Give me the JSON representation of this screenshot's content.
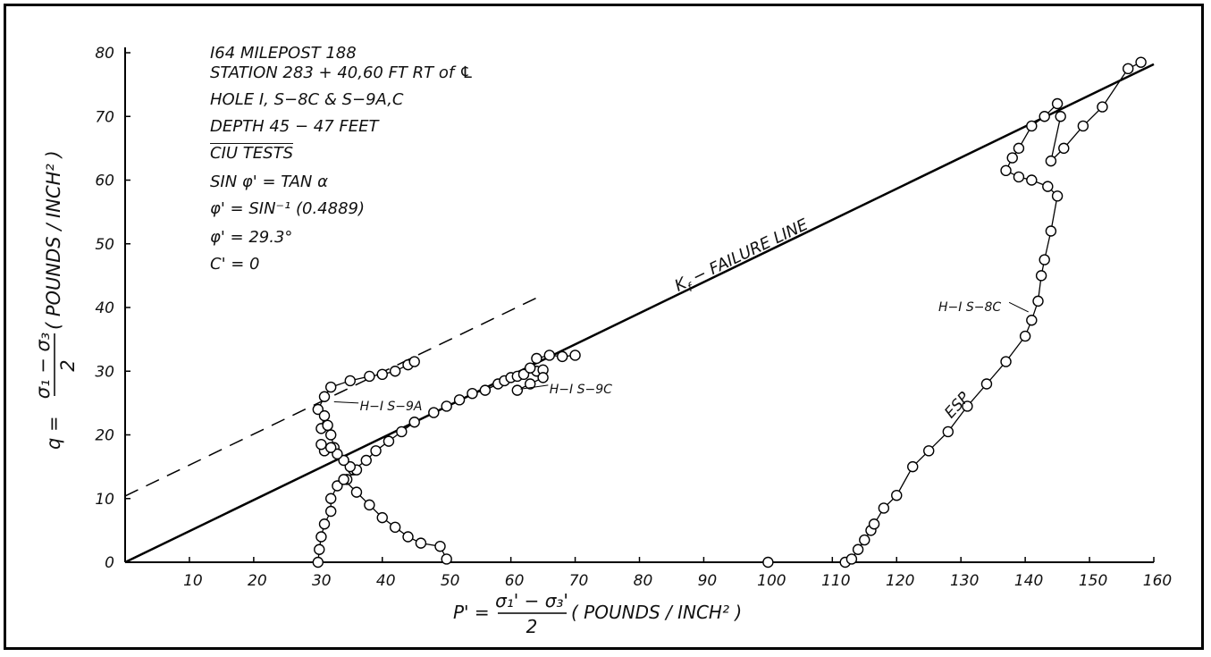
{
  "chart_data": {
    "type": "line",
    "x_axis": {
      "range": [
        0,
        160
      ],
      "ticks": [
        10,
        20,
        30,
        40,
        50,
        60,
        70,
        80,
        90,
        100,
        110,
        120,
        130,
        140,
        150,
        160
      ]
    },
    "y_axis": {
      "range": [
        0,
        80
      ],
      "ticks": [
        0,
        10,
        20,
        30,
        40,
        50,
        60,
        70,
        80
      ]
    },
    "xlabel": {
      "prefix": "P' =",
      "numerator": "σ₁' − σ₃'",
      "denominator": "2",
      "units": "( POUNDS / INCH² )"
    },
    "ylabel": {
      "prefix": "q =",
      "numerator": "σ₁ − σ₃",
      "denominator": "2",
      "units": "( POUNDS / INCH² )"
    },
    "notes": [
      "I64 MILEPOST 188",
      "STATION 283 + 40,60 FT RT of ℄",
      "HOLE I, S−8C & S−9A,C",
      "DEPTH 45 − 47 FEET",
      "CIU TESTS",
      "SIN φ' = TAN α",
      "φ' = SIN⁻¹ (0.4889)",
      "φ' = 29.3°",
      "C' = 0"
    ],
    "lines": [
      {
        "name": "Kf − FAILURE LINE",
        "style": "solid",
        "points": [
          [
            0,
            0
          ],
          [
            160,
            78.2
          ]
        ]
      },
      {
        "name": "",
        "style": "dashed",
        "points": [
          [
            0,
            10.4
          ],
          [
            65,
            42
          ]
        ]
      }
    ],
    "series": [
      {
        "name": "H−I S−9A",
        "points": [
          [
            30,
            24
          ],
          [
            31,
            26
          ],
          [
            32,
            27.5
          ],
          [
            35,
            28.5
          ],
          [
            38,
            29.2
          ],
          [
            40,
            29.5
          ],
          [
            42,
            30
          ],
          [
            44,
            31
          ],
          [
            45,
            31.5
          ]
        ]
      },
      {
        "name": "H−I S−9A",
        "points": [
          [
            30.5,
            21
          ],
          [
            31,
            23
          ],
          [
            31.5,
            21.5
          ],
          [
            32,
            20
          ],
          [
            32.5,
            18
          ],
          [
            31,
            17.5
          ],
          [
            30.5,
            18.5
          ]
        ]
      },
      {
        "name": "H−I S−9C",
        "points": [
          [
            35.5,
            14.5
          ],
          [
            37.5,
            16
          ],
          [
            39,
            17.5
          ],
          [
            41,
            19
          ],
          [
            43,
            20.5
          ],
          [
            45,
            22
          ],
          [
            48,
            23.5
          ],
          [
            50,
            24.5
          ],
          [
            52,
            25.5
          ],
          [
            54,
            26.5
          ],
          [
            56,
            27
          ],
          [
            58,
            28
          ],
          [
            59,
            28.5
          ],
          [
            60,
            29
          ],
          [
            61,
            29.2
          ],
          [
            62,
            29.5
          ],
          [
            64,
            30
          ],
          [
            65,
            30.2
          ],
          [
            63,
            30.5
          ],
          [
            64,
            32
          ],
          [
            66,
            32.5
          ],
          [
            68,
            32.3
          ],
          [
            70,
            32.5
          ]
        ]
      },
      {
        "name": "H−I S−9C",
        "points": [
          [
            61,
            27
          ],
          [
            63,
            28
          ],
          [
            65,
            29
          ]
        ]
      },
      {
        "name": "",
        "points": [
          [
            30,
            0
          ],
          [
            30.2,
            2
          ],
          [
            30.5,
            4
          ],
          [
            31,
            6
          ],
          [
            32,
            8
          ],
          [
            32,
            10
          ],
          [
            33,
            12
          ],
          [
            34.5,
            13
          ],
          [
            36,
            14.5
          ],
          [
            35,
            15
          ],
          [
            34,
            16
          ],
          [
            33,
            17
          ],
          [
            32,
            18
          ]
        ]
      },
      {
        "name": "",
        "points": [
          [
            34,
            13
          ],
          [
            36,
            11
          ],
          [
            38,
            9
          ],
          [
            40,
            7
          ],
          [
            42,
            5.5
          ],
          [
            44,
            4
          ],
          [
            46,
            3
          ],
          [
            49,
            2.5
          ],
          [
            50,
            0.5
          ]
        ]
      },
      {
        "name": "H−I S−8C",
        "points": [
          [
            112,
            0
          ],
          [
            113,
            0.5
          ],
          [
            114,
            2
          ],
          [
            115,
            3.5
          ],
          [
            116,
            5
          ],
          [
            116.5,
            6
          ],
          [
            118,
            8.5
          ],
          [
            120,
            10.5
          ],
          [
            122.5,
            15
          ],
          [
            125,
            17.5
          ],
          [
            128,
            20.5
          ],
          [
            131,
            24.5
          ],
          [
            134,
            28
          ],
          [
            137,
            31.5
          ],
          [
            140,
            35.5
          ],
          [
            141,
            38
          ],
          [
            142,
            41
          ],
          [
            142.5,
            45
          ],
          [
            143,
            47.5
          ],
          [
            144,
            52
          ],
          [
            145,
            57.5
          ],
          [
            143.5,
            59
          ],
          [
            141,
            60
          ],
          [
            139,
            60.5
          ],
          [
            137,
            61.5
          ],
          [
            138,
            63.5
          ],
          [
            139,
            65
          ],
          [
            141,
            68.5
          ],
          [
            143,
            70
          ],
          [
            145,
            72
          ],
          [
            145.5,
            70
          ],
          [
            144,
            63
          ],
          [
            146,
            65
          ],
          [
            149,
            68.5
          ],
          [
            152,
            71.5
          ],
          [
            156,
            77.5
          ],
          [
            158,
            78.5
          ]
        ]
      }
    ],
    "annotations": [
      {
        "text": "K",
        "sub": "f",
        "rest": " − FAILURE LINE"
      },
      {
        "text": "H−I S−9A"
      },
      {
        "text": "H−I S−9C"
      },
      {
        "text": "H−I S−8C"
      },
      {
        "text": "ESP"
      }
    ],
    "extra_points": [
      [
        100,
        0
      ]
    ]
  }
}
